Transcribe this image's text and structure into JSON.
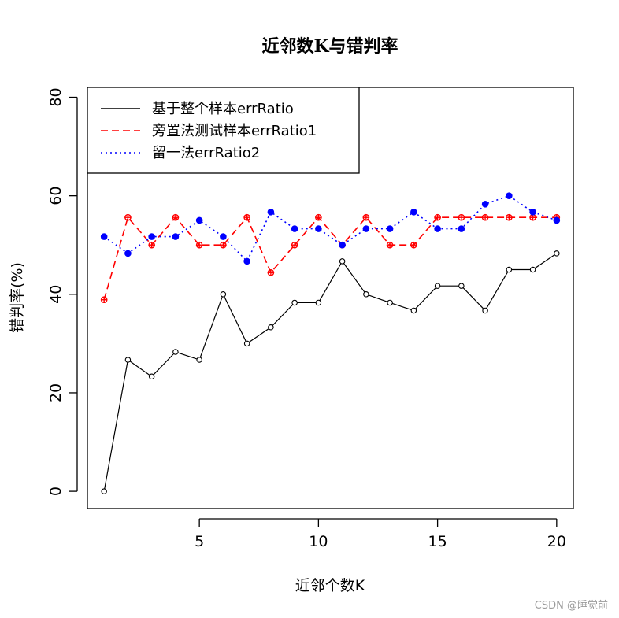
{
  "chart_data": {
    "type": "line",
    "title": "近邻数K与错判率",
    "xlabel": "近邻个数K",
    "ylabel": "错判率(%)",
    "xlim": [
      0.3,
      20.7
    ],
    "ylim": [
      -3.5,
      82
    ],
    "x_ticks": [
      5,
      10,
      15,
      20
    ],
    "y_ticks": [
      0,
      20,
      40,
      60,
      80
    ],
    "grid": false,
    "legend_position": "top-left",
    "x": [
      1,
      2,
      3,
      4,
      5,
      6,
      7,
      8,
      9,
      10,
      11,
      12,
      13,
      14,
      15,
      16,
      17,
      18,
      19,
      20
    ],
    "series": [
      {
        "name": "基于整个样本errRatio",
        "color": "#000000",
        "line": "solid",
        "marker": "open-circle",
        "values": [
          0,
          26.7,
          23.3,
          28.3,
          26.7,
          40,
          30,
          33.3,
          38.3,
          38.3,
          46.7,
          40,
          38.3,
          36.7,
          41.7,
          41.7,
          36.7,
          45,
          45,
          48.3
        ]
      },
      {
        "name": "旁置法测试样本errRatio1",
        "color": "#ff0000",
        "line": "dashed",
        "marker": "crossed-circle",
        "values": [
          38.9,
          55.6,
          50,
          55.6,
          50,
          50,
          55.6,
          44.4,
          50,
          55.6,
          50,
          55.6,
          50,
          50,
          55.6,
          55.6,
          55.6,
          55.6,
          55.6,
          55.6
        ]
      },
      {
        "name": "留一法errRatio2",
        "color": "#0000ff",
        "line": "dotted",
        "marker": "filled-circle",
        "values": [
          51.7,
          48.3,
          51.7,
          51.7,
          55,
          51.7,
          46.7,
          56.7,
          53.3,
          53.3,
          50,
          53.3,
          53.3,
          56.7,
          53.3,
          53.3,
          58.3,
          60,
          56.7,
          55
        ]
      }
    ]
  },
  "watermark": "CSDN @睡觉前"
}
